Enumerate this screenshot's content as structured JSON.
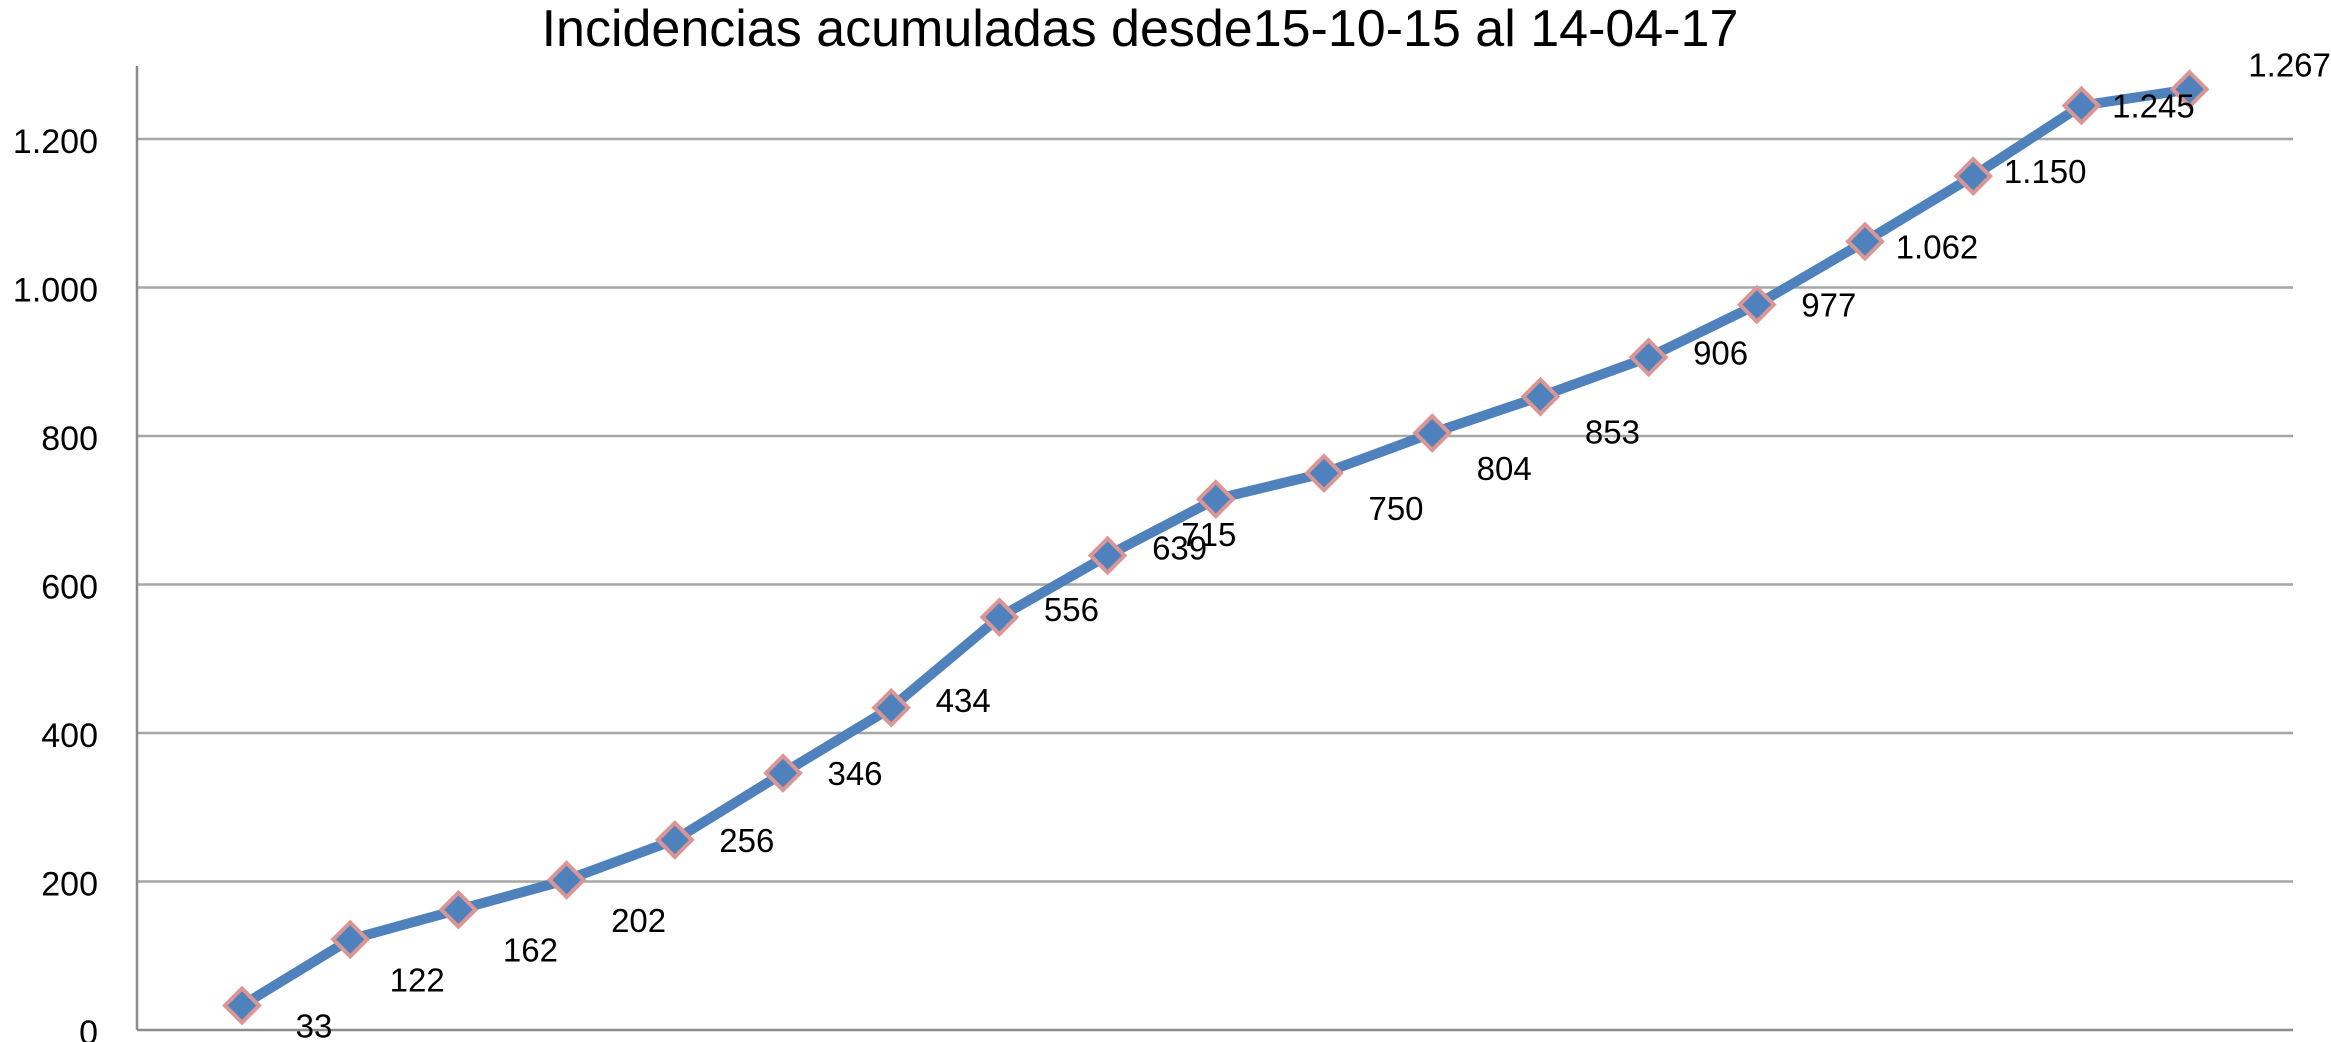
{
  "chart_data": {
    "type": "line",
    "title": "Incidencias acumuladas desde15-10-15 al 14-04-17",
    "xlabel": "",
    "ylabel": "",
    "ylim": [
      0,
      1300
    ],
    "y_ticks": [
      {
        "value": 0,
        "label": "0"
      },
      {
        "value": 200,
        "label": "200"
      },
      {
        "value": 400,
        "label": "400"
      },
      {
        "value": 600,
        "label": "600"
      },
      {
        "value": 800,
        "label": "800"
      },
      {
        "value": 1000,
        "label": "1.000"
      },
      {
        "value": 1200,
        "label": "1.200"
      }
    ],
    "grid": true,
    "legend": "none",
    "series": [
      {
        "values": [
          33,
          122,
          162,
          202,
          256,
          346,
          434,
          556,
          639,
          715,
          750,
          804,
          853,
          906,
          977,
          1062,
          1150,
          1245,
          1267
        ],
        "labels": [
          "33",
          "122",
          "162",
          "202",
          "256",
          "346",
          "434",
          "556",
          "639",
          "715",
          "750",
          "804",
          "853",
          "906",
          "977",
          "1.062",
          "1.150",
          "1.245",
          "1.267"
        ]
      }
    ],
    "colors": {
      "line": "#4f81bd",
      "marker_fill": "#4f81bd",
      "marker_stroke": "#d99694",
      "grid": "#a6a6a6"
    }
  }
}
